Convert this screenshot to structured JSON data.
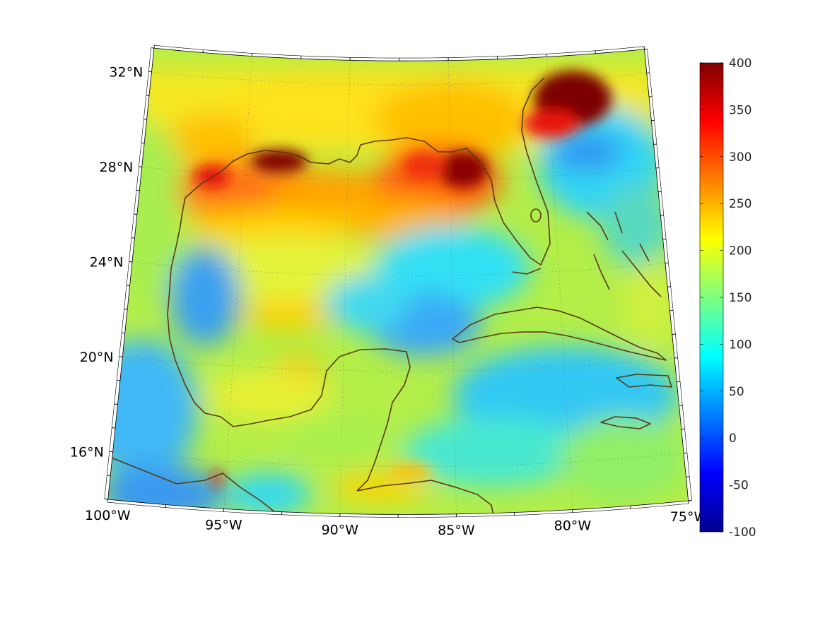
{
  "map": {
    "projection": "conic",
    "lon_range": [
      -100,
      -75
    ],
    "lat_range": [
      14,
      33
    ],
    "graticule_grid": true,
    "lat_labels": [
      {
        "lat": 32,
        "text": "32°N"
      },
      {
        "lat": 28,
        "text": "28°N"
      },
      {
        "lat": 24,
        "text": "24°N"
      },
      {
        "lat": 20,
        "text": "20°N"
      },
      {
        "lat": 16,
        "text": "16°N"
      }
    ],
    "lon_labels": [
      {
        "lon": -100,
        "text": "100°W"
      },
      {
        "lon": -95,
        "text": "95°W"
      },
      {
        "lon": -90,
        "text": "90°W"
      },
      {
        "lon": -85,
        "text": "85°W"
      },
      {
        "lon": -80,
        "text": "80°W"
      },
      {
        "lon": -75,
        "text": "75°W"
      }
    ],
    "coastline_color": "#5a3a10"
  },
  "colorbar": {
    "colormap": "jet",
    "min": -100,
    "max": 400,
    "ticks": [
      "400",
      "350",
      "300",
      "250",
      "200",
      "150",
      "100",
      "50",
      "0",
      "-50",
      "-100"
    ]
  },
  "field_colors": {
    "background": "#b4ee48",
    "cyan": "#2fe6f0",
    "light_blue": "#3fb4f5",
    "blue": "#2f95f0",
    "yellow": "#f4ee20",
    "orange": "#ffb200",
    "orange_red": "#ff6a10",
    "red": "#e81810",
    "dark_red": "#8a0000",
    "green_yellow": "#c8f03a",
    "teal": "#6ce8b0"
  }
}
